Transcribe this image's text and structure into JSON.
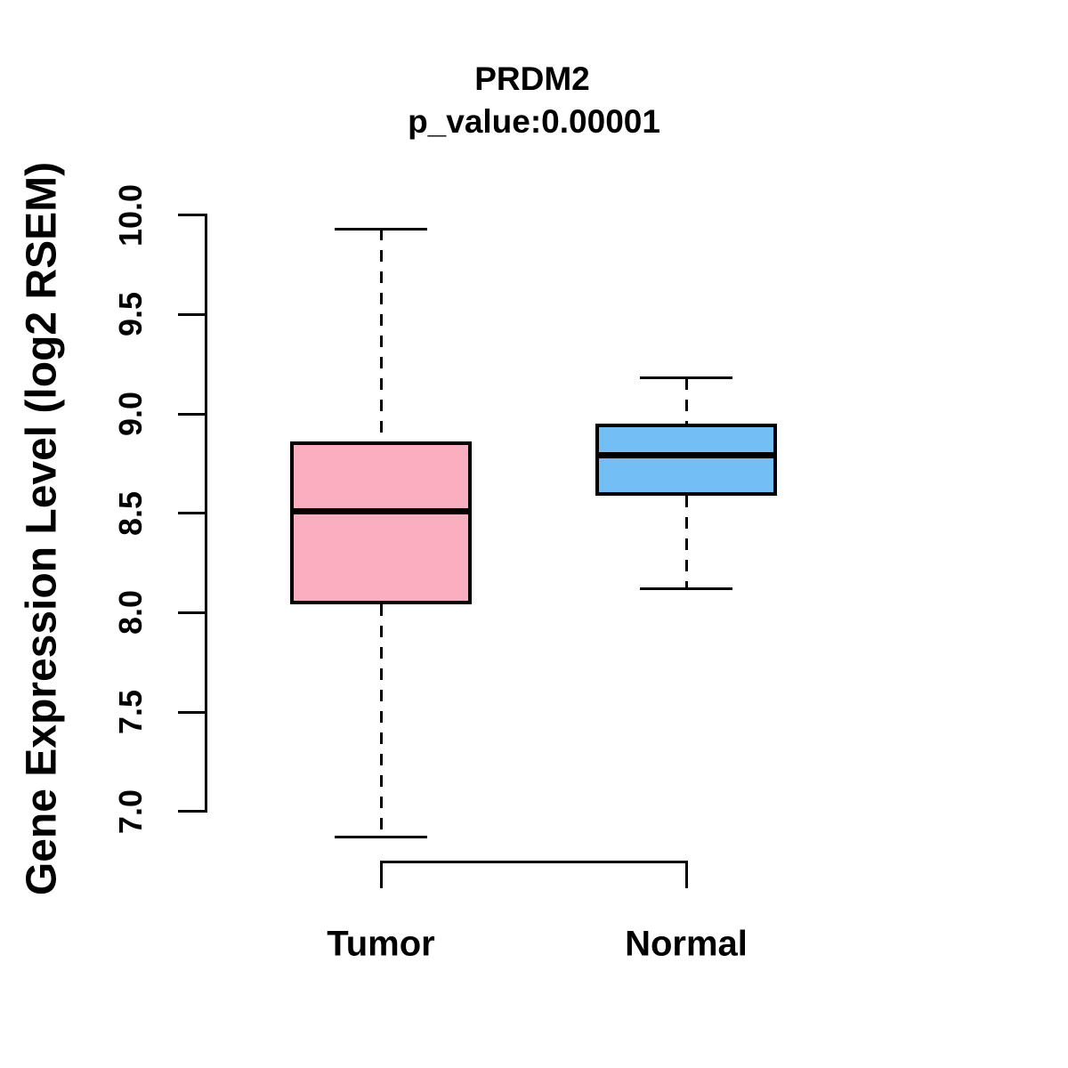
{
  "chart_data": {
    "type": "boxplot",
    "title": "PRDM2",
    "subtitle": "p_value:0.00001",
    "ylabel": "Gene Expression Level (log2 RSEM)",
    "xlabel": "",
    "categories": [
      "Tumor",
      "Normal"
    ],
    "y_ticks": [
      "7.0",
      "7.5",
      "8.0",
      "8.5",
      "9.0",
      "9.5",
      "10.0"
    ],
    "y_tick_values": [
      7.0,
      7.5,
      8.0,
      8.5,
      9.0,
      9.5,
      10.0
    ],
    "ylim": [
      6.8,
      10.05
    ],
    "grid": false,
    "legend": "none",
    "stroke_color": "#000000",
    "series": [
      {
        "name": "Tumor",
        "fill_color": "#FCAEC1",
        "whisker_low": 6.87,
        "q1": 8.04,
        "median": 8.51,
        "q3": 8.86,
        "whisker_high": 9.93
      },
      {
        "name": "Normal",
        "fill_color": "#73BEF5",
        "whisker_low": 8.12,
        "q1": 8.59,
        "median": 8.79,
        "q3": 8.95,
        "whisker_high": 9.18
      }
    ],
    "comparison_bracket": {
      "groups": [
        "Tumor",
        "Normal"
      ],
      "label": ""
    }
  }
}
